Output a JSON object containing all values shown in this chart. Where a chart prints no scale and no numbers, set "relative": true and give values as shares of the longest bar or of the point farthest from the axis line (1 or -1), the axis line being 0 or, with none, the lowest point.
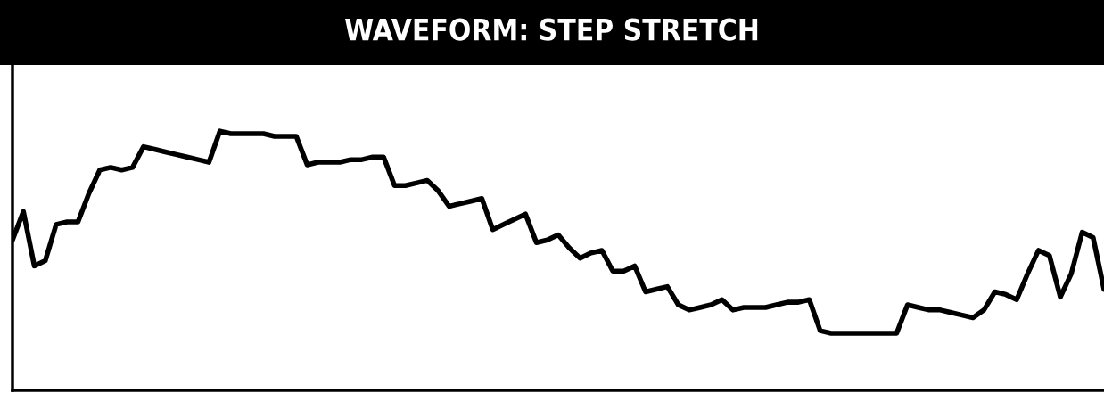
{
  "chart_data": {
    "type": "line",
    "title": "WAVEFORM: STEP STRETCH",
    "relative": true,
    "categories": [
      null,
      null,
      null,
      null,
      null,
      null,
      null,
      null,
      null,
      null,
      null,
      null,
      null,
      null,
      null,
      null,
      null,
      null,
      null,
      null,
      null,
      null,
      null,
      null,
      null,
      null,
      null,
      null,
      null,
      null,
      null,
      null,
      null,
      null,
      null,
      null,
      null,
      null,
      null,
      null,
      null,
      null,
      null,
      null,
      null,
      null,
      null,
      null,
      null,
      null,
      null,
      null,
      null,
      null,
      null,
      null,
      null,
      null,
      null,
      null,
      null,
      null,
      null,
      null,
      null,
      null,
      null,
      null,
      null,
      null,
      null,
      null,
      null,
      null,
      null,
      null,
      null,
      null,
      null,
      null,
      null,
      null,
      null,
      null,
      null,
      null,
      null,
      null,
      null,
      null,
      null,
      null,
      null,
      null,
      null,
      null,
      null,
      null,
      null,
      null,
      null
    ],
    "series": [
      {
        "color": "#000000",
        "values": [
          0.58,
          0.69,
          0.48,
          0.5,
          0.64,
          0.65,
          0.65,
          0.76,
          0.85,
          0.86,
          0.85,
          0.86,
          0.94,
          0.93,
          0.92,
          0.91,
          0.9,
          0.89,
          0.88,
          1.0,
          0.99,
          0.99,
          0.99,
          0.99,
          0.98,
          0.98,
          0.98,
          0.87,
          0.88,
          0.88,
          0.88,
          0.89,
          0.89,
          0.9,
          0.9,
          0.79,
          0.79,
          0.8,
          0.81,
          0.77,
          0.71,
          0.72,
          0.73,
          0.74,
          0.62,
          0.64,
          0.66,
          0.68,
          0.57,
          0.58,
          0.6,
          0.55,
          0.51,
          0.53,
          0.54,
          0.46,
          0.46,
          0.48,
          0.38,
          0.39,
          0.4,
          0.33,
          0.31,
          0.32,
          0.33,
          0.35,
          0.31,
          0.32,
          0.32,
          0.32,
          0.33,
          0.34,
          0.34,
          0.35,
          0.23,
          0.22,
          0.22,
          0.22,
          0.22,
          0.22,
          0.22,
          0.22,
          0.33,
          0.32,
          0.31,
          0.31,
          0.3,
          0.29,
          0.28,
          0.31,
          0.38,
          0.37,
          0.35,
          0.45,
          0.54,
          0.52,
          0.36,
          0.45,
          0.61,
          0.59,
          0.39
        ]
      }
    ]
  }
}
